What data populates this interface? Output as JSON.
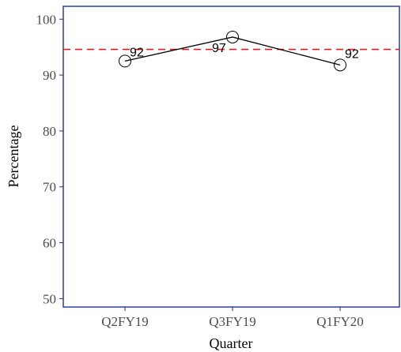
{
  "chart_data": {
    "type": "line",
    "categories": [
      "Q2FY19",
      "Q3FY19",
      "Q1FY20"
    ],
    "series": [
      {
        "values": [
          92.5,
          96.8,
          91.8
        ],
        "labels": [
          "92",
          "97",
          "92"
        ]
      }
    ],
    "reference_line": {
      "y": 94.6,
      "style": "dashed",
      "color": "#e41a1c"
    },
    "xlabel": "Quarter",
    "ylabel": "Percentage",
    "ylim": [
      48.5,
      102.3
    ],
    "yticks": [
      50,
      60,
      70,
      80,
      90,
      100
    ],
    "grid": false,
    "legend": "none",
    "colors": {
      "line": "#000000",
      "marker": "#000000",
      "panel_border": "#2b3bb0",
      "tick_text": "#4d4d4d"
    }
  }
}
